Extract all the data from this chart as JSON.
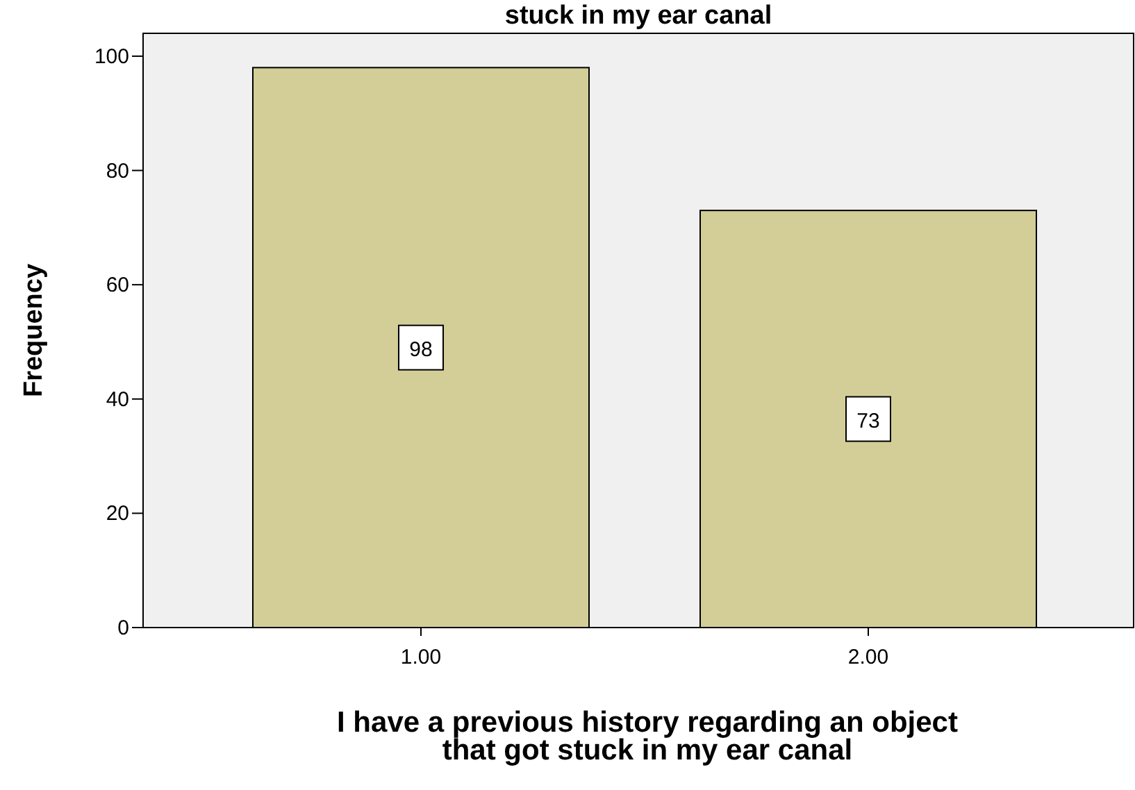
{
  "chart_data": {
    "type": "bar",
    "title": "stuck in my ear canal",
    "xlabel": "I have a previous history regarding an object\nthat got stuck in my ear canal",
    "ylabel": "Frequency",
    "categories": [
      "1.00",
      "2.00"
    ],
    "values": [
      98,
      73
    ],
    "color": "#d3ce97",
    "ylim": [
      0,
      104
    ],
    "yticks": [
      0,
      20,
      40,
      60,
      80,
      100
    ],
    "grid": false,
    "data_labels": true
  }
}
